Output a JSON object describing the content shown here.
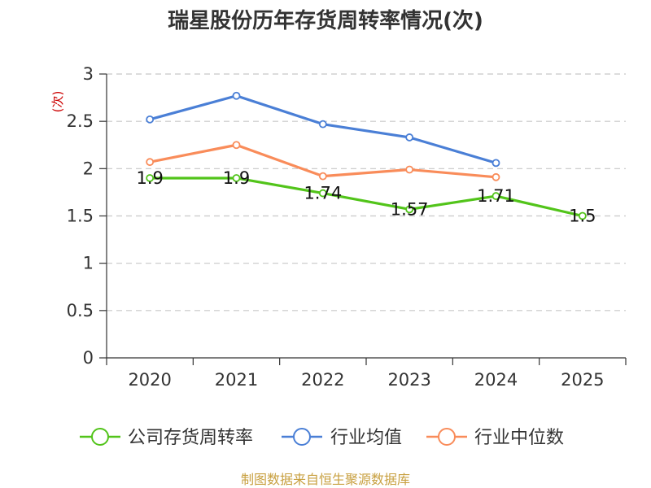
{
  "chart_data": {
    "type": "line",
    "title": "瑞星股份历年存货周转率情况(次)",
    "unit_label": "(次)",
    "categories": [
      "2020",
      "2021",
      "2022",
      "2023",
      "2024",
      "2025"
    ],
    "y_ticks": [
      "0",
      "0.5",
      "1",
      "1.5",
      "2",
      "2.5",
      "3"
    ],
    "ylim": [
      0,
      3
    ],
    "grid": true,
    "legend_position": "bottom",
    "series": [
      {
        "name": "公司存货周转率",
        "color": "#52c41a",
        "values": [
          1.9,
          1.9,
          1.74,
          1.57,
          1.71,
          1.5
        ],
        "labels": [
          "1.9",
          "1.9",
          "1.74",
          "1.57",
          "1.71",
          "1.5"
        ]
      },
      {
        "name": "行业均值",
        "color": "#4a7fd6",
        "values": [
          2.52,
          2.77,
          2.47,
          2.33,
          2.06,
          null
        ]
      },
      {
        "name": "行业中位数",
        "color": "#f98c5a",
        "values": [
          2.07,
          2.25,
          1.92,
          1.99,
          1.91,
          null
        ]
      }
    ],
    "source": "制图数据来自恒生聚源数据库"
  }
}
